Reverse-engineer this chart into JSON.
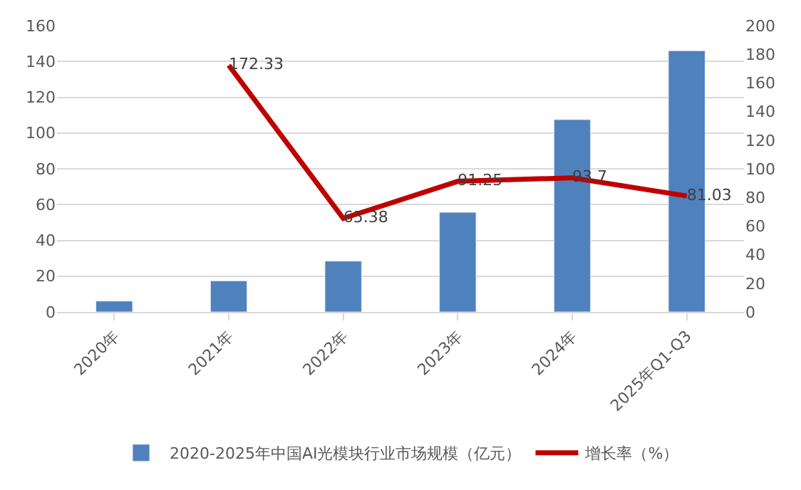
{
  "chart_data": {
    "type": "bar",
    "categories": [
      "2020年",
      "2021年",
      "2022年",
      "2023年",
      "2024年",
      "2025年Q1-Q3"
    ],
    "series": [
      {
        "name": "2020-2025年中国AI光模块行业市场规模（亿元）",
        "color": "#4f81bd",
        "values": [
          6.1,
          17.4,
          28.4,
          55.7,
          107.5,
          146
        ]
      },
      {
        "name": "增长率（%）",
        "type": "line",
        "axis": "y2",
        "color": "#c00000",
        "values": [
          null,
          172.33,
          65.38,
          91.25,
          93.7,
          81.03
        ],
        "value_labels": [
          null,
          "172.33",
          "65.38",
          "91.25",
          "93.7",
          "81.03"
        ]
      }
    ],
    "ylim": [
      0,
      160
    ],
    "yticks": [
      0,
      20,
      40,
      60,
      80,
      100,
      120,
      140,
      160
    ],
    "y2lim": [
      0,
      200
    ],
    "y2ticks": [
      0,
      20,
      40,
      60,
      80,
      100,
      120,
      140,
      160,
      180,
      200
    ],
    "grid": "y",
    "legend": "bottom",
    "marker": "none"
  }
}
